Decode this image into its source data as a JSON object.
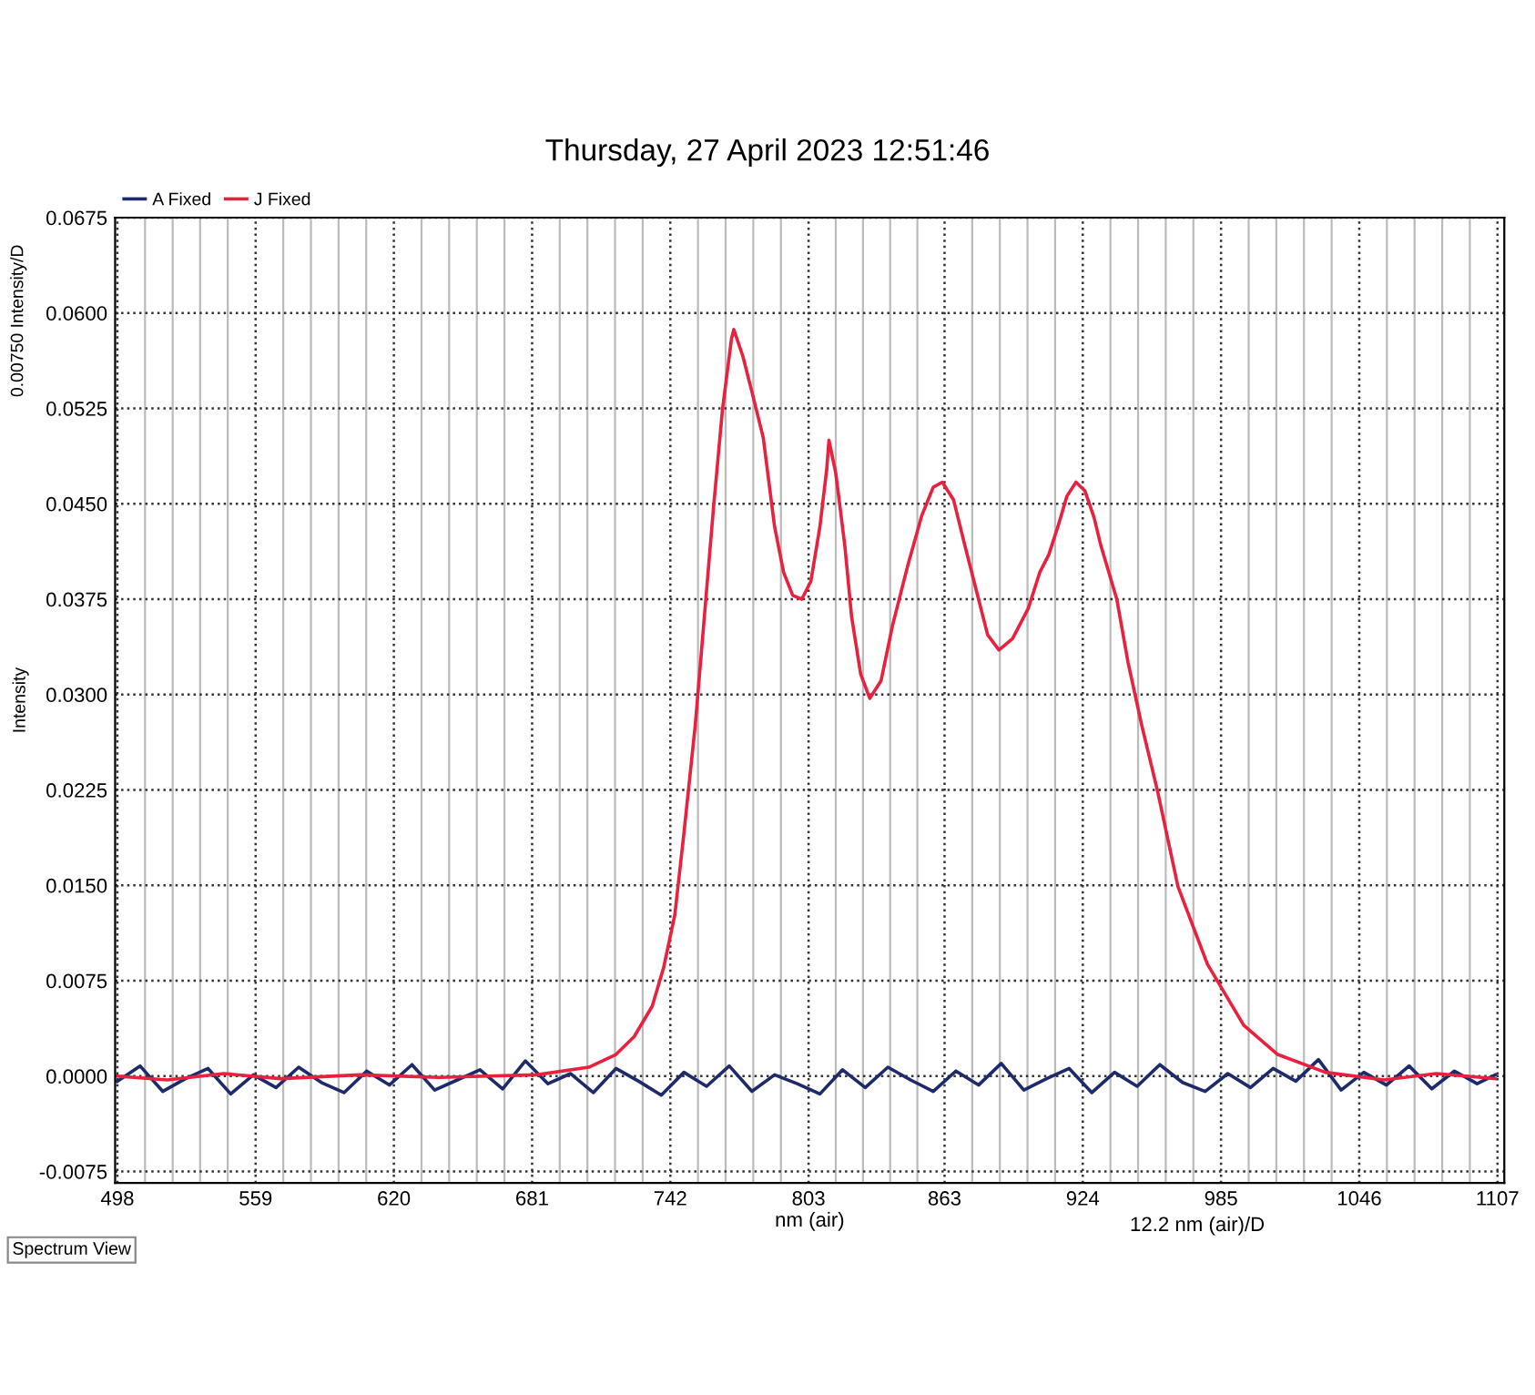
{
  "chart_data": {
    "type": "line",
    "title": "Thursday, 27 April 2023 12:51:46",
    "xlabel": "nm (air)",
    "ylabel": "Intensity",
    "annotations": [
      "0.00750 Intensity/D",
      "12.2 nm (air)/D",
      "Spectrum View"
    ],
    "series": [
      {
        "name": "A Fixed",
        "color": "#1f2a6b",
        "x": [
          498,
          508,
          518,
          528,
          538,
          548,
          558,
          568,
          578,
          588,
          598,
          608,
          618,
          628,
          638,
          648,
          658,
          668,
          678,
          688,
          698,
          708,
          718,
          728,
          738,
          748,
          758,
          768,
          778,
          788,
          798,
          808,
          818,
          828,
          838,
          848,
          858,
          868,
          878,
          888,
          898,
          908,
          918,
          928,
          938,
          948,
          958,
          968,
          978,
          988,
          998,
          1008,
          1018,
          1028,
          1038,
          1048,
          1058,
          1068,
          1078,
          1088,
          1098,
          1106
        ],
        "values": [
          -0.0004,
          0.0008,
          -0.0012,
          -0.0002,
          0.0006,
          -0.0014,
          0.0001,
          -0.0009,
          0.0007,
          -0.0005,
          -0.0013,
          0.0004,
          -0.0007,
          0.0009,
          -0.0011,
          -0.0003,
          0.0005,
          -0.001,
          0.0012,
          -0.0006,
          0.0002,
          -0.0013,
          0.0006,
          -0.0004,
          -0.0015,
          0.0003,
          -0.0008,
          0.0008,
          -0.0012,
          0.0001,
          -0.0006,
          -0.0014,
          0.0005,
          -0.0009,
          0.0007,
          -0.0003,
          -0.0012,
          0.0004,
          -0.0007,
          0.001,
          -0.0011,
          -0.0002,
          0.0006,
          -0.0013,
          0.0003,
          -0.0008,
          0.0009,
          -0.0005,
          -0.0012,
          0.0002,
          -0.0009,
          0.0006,
          -0.0004,
          0.0013,
          -0.0011,
          0.0003,
          -0.0007,
          0.0008,
          -0.001,
          0.0004,
          -0.0006,
          0.0001
        ]
      },
      {
        "name": "J Fixed",
        "color": "#e8213f",
        "x": [
          498,
          520,
          545,
          570,
          605,
          640,
          683,
          706,
          718,
          726,
          734,
          739,
          744,
          748,
          753,
          757,
          761,
          765,
          769,
          770,
          774,
          778,
          783,
          788,
          792,
          796,
          800,
          804,
          808,
          811,
          812,
          815,
          819,
          822,
          826,
          830,
          835,
          840,
          847,
          853,
          858,
          862,
          867,
          872,
          878,
          882,
          887,
          893,
          900,
          905,
          909,
          913,
          917,
          921,
          925,
          929,
          932,
          939,
          944,
          950,
          957,
          966,
          979,
          995,
          1010,
          1031,
          1057,
          1080,
          1106
        ],
        "values": [
          0.0,
          -0.0003,
          0.0002,
          -0.0002,
          0.0001,
          -0.0001,
          0.0001,
          0.0007,
          0.0017,
          0.0031,
          0.0055,
          0.0085,
          0.0127,
          0.0191,
          0.0276,
          0.0361,
          0.0446,
          0.0524,
          0.058,
          0.0587,
          0.0566,
          0.0538,
          0.0502,
          0.0432,
          0.0396,
          0.0378,
          0.0375,
          0.0389,
          0.0432,
          0.0477,
          0.05,
          0.0474,
          0.0417,
          0.0361,
          0.0316,
          0.0297,
          0.0311,
          0.0354,
          0.0403,
          0.0441,
          0.0463,
          0.0467,
          0.0453,
          0.0417,
          0.0375,
          0.0347,
          0.0335,
          0.0344,
          0.0368,
          0.0396,
          0.041,
          0.0432,
          0.0456,
          0.0467,
          0.046,
          0.0439,
          0.0417,
          0.0375,
          0.0325,
          0.0276,
          0.0224,
          0.0149,
          0.0088,
          0.004,
          0.0017,
          0.0003,
          -0.0003,
          0.0002,
          -0.0002
        ]
      }
    ],
    "xlim": [
      497,
      1110
    ],
    "ylim": [
      -0.0084,
      0.0675
    ],
    "xticks": [
      498,
      {
        "value": 510.2,
        "label": null
      },
      {
        "value": 522.4,
        "label": null
      },
      {
        "value": 534.5,
        "label": null
      },
      {
        "value": 546.7,
        "label": null
      },
      559,
      {
        "value": 571.2,
        "label": null
      },
      {
        "value": 583.4,
        "label": null
      },
      {
        "value": 595.6,
        "label": null
      },
      {
        "value": 607.8,
        "label": null
      },
      620,
      {
        "value": 632.2,
        "label": null
      },
      {
        "value": 644.4,
        "label": null
      },
      {
        "value": 656.6,
        "label": null
      },
      {
        "value": 668.8,
        "label": null
      },
      681,
      {
        "value": 693.2,
        "label": null
      },
      {
        "value": 705.4,
        "label": null
      },
      {
        "value": 717.6,
        "label": null
      },
      {
        "value": 729.8,
        "label": null
      },
      742,
      {
        "value": 754.2,
        "label": null
      },
      {
        "value": 766.4,
        "label": null
      },
      {
        "value": 778.6,
        "label": null
      },
      {
        "value": 790.8,
        "label": null
      },
      803,
      {
        "value": 815,
        "label": null
      },
      {
        "value": 827,
        "label": null
      },
      {
        "value": 839,
        "label": null
      },
      {
        "value": 851,
        "label": null
      },
      863,
      {
        "value": 875.2,
        "label": null
      },
      {
        "value": 887.4,
        "label": null
      },
      {
        "value": 899.6,
        "label": null
      },
      {
        "value": 911.8,
        "label": null
      },
      924,
      {
        "value": 936.2,
        "label": null
      },
      {
        "value": 948.4,
        "label": null
      },
      {
        "value": 960.6,
        "label": null
      },
      {
        "value": 972.8,
        "label": null
      },
      985,
      {
        "value": 997.2,
        "label": null
      },
      {
        "value": 1009.4,
        "label": null
      },
      {
        "value": 1021.6,
        "label": null
      },
      {
        "value": 1033.8,
        "label": null
      },
      1046,
      {
        "value": 1058.2,
        "label": null
      },
      {
        "value": 1070.4,
        "label": null
      },
      {
        "value": 1082.6,
        "label": null
      },
      {
        "value": 1094.8,
        "label": null
      },
      1107
    ],
    "yticks": [
      {
        "value": -0.0075,
        "label": "-0.0075"
      },
      {
        "value": 0.0,
        "label": "0.0000"
      },
      {
        "value": 0.0075,
        "label": "0.0075"
      },
      {
        "value": 0.015,
        "label": "0.0150"
      },
      {
        "value": 0.0225,
        "label": "0.0225"
      },
      {
        "value": 0.03,
        "label": "0.0300"
      },
      {
        "value": 0.0375,
        "label": "0.0375"
      },
      {
        "value": 0.045,
        "label": "0.0450"
      },
      {
        "value": 0.0525,
        "label": "0.0525"
      },
      {
        "value": 0.06,
        "label": "0.0600"
      },
      {
        "value": 0.0675,
        "label": "0.0675"
      }
    ],
    "grid": true,
    "legend": "top left",
    "line_style": "solid",
    "marker": "none"
  }
}
